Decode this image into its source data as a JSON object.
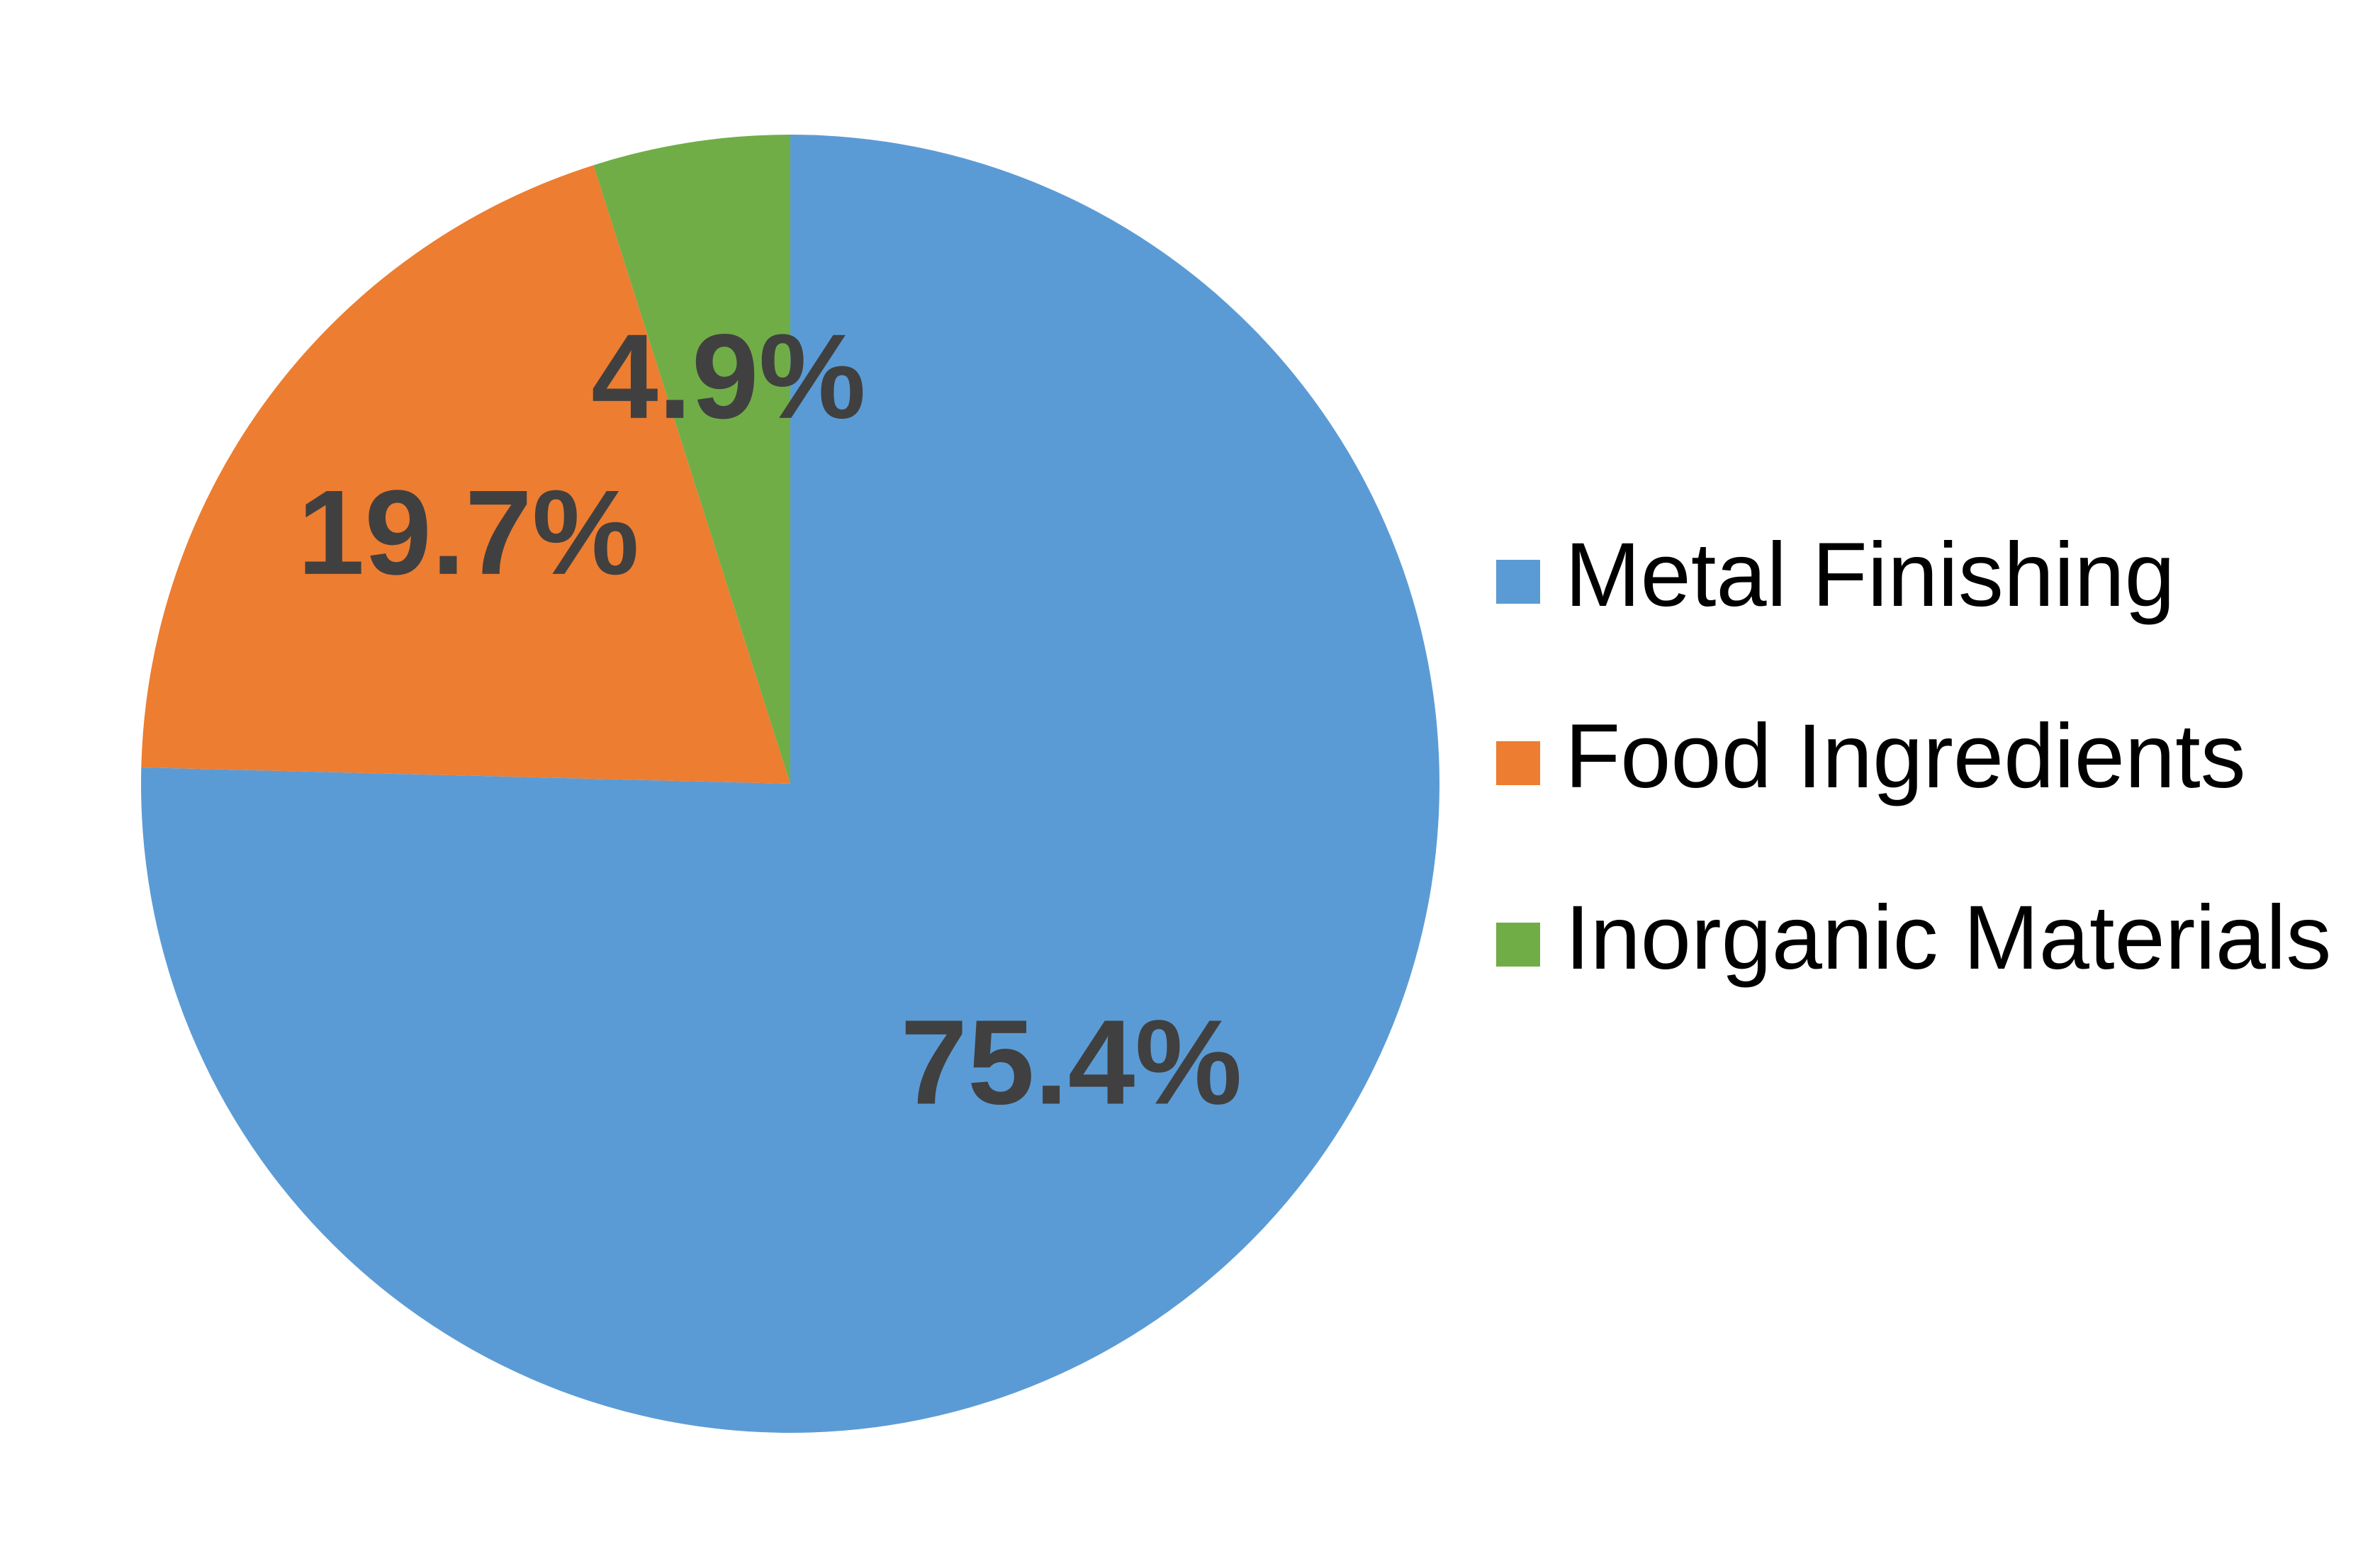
{
  "chart_data": {
    "type": "pie",
    "categories": [
      "Metal Finishing",
      "Food Ingredients",
      "Inorganic Materials"
    ],
    "values": [
      75.4,
      19.7,
      4.9
    ],
    "value_labels": [
      "75.4%",
      "19.7%",
      "4.9%"
    ],
    "colors": [
      "#5b9bd5",
      "#ed7d31",
      "#70ad47"
    ],
    "legend": "right"
  }
}
